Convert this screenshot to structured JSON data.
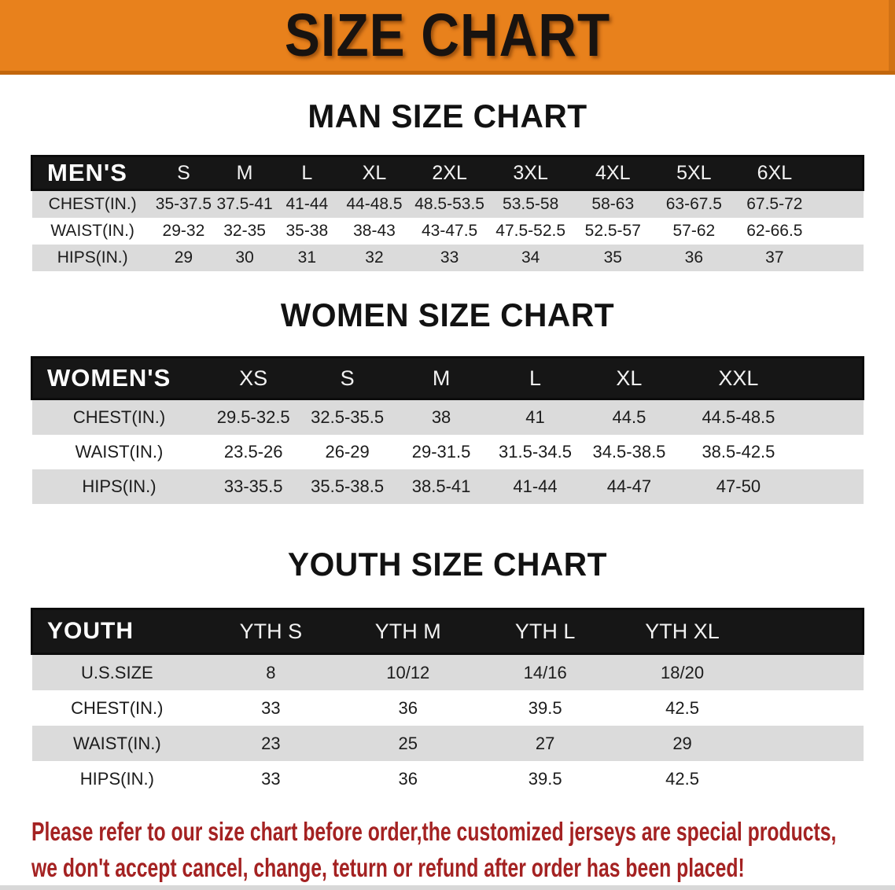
{
  "banner": {
    "title": "SIZE CHART"
  },
  "colors": {
    "banner_orange": "#E8811C",
    "banner_orange_dark": "#C2660C",
    "header_band_black": "#161616",
    "row_gray": "#DBDBDB",
    "disclaimer_red": "#A42222"
  },
  "sections": [
    {
      "heading": "MAN SIZE CHART",
      "table": {
        "corner_label": "MEN'S",
        "columns": [
          "S",
          "M",
          "L",
          "XL",
          "2XL",
          "3XL",
          "4XL",
          "5XL",
          "6XL"
        ],
        "rows": [
          {
            "label": "CHEST(IN.)",
            "values": [
              "35-37.5",
              "37.5-41",
              "41-44",
              "44-48.5",
              "48.5-53.5",
              "53.5-58",
              "58-63",
              "63-67.5",
              "67.5-72"
            ]
          },
          {
            "label": "WAIST(IN.)",
            "values": [
              "29-32",
              "32-35",
              "35-38",
              "38-43",
              "43-47.5",
              "47.5-52.5",
              "52.5-57",
              "57-62",
              "62-66.5"
            ]
          },
          {
            "label": "HIPS(IN.)",
            "values": [
              "29",
              "30",
              "31",
              "32",
              "33",
              "34",
              "35",
              "36",
              "37"
            ]
          }
        ]
      }
    },
    {
      "heading": "WOMEN SIZE CHART",
      "table": {
        "corner_label": "WOMEN'S",
        "columns": [
          "XS",
          "S",
          "M",
          "L",
          "XL",
          "XXL"
        ],
        "rows": [
          {
            "label": "CHEST(IN.)",
            "values": [
              "29.5-32.5",
              "32.5-35.5",
              "38",
              "41",
              "44.5",
              "44.5-48.5"
            ]
          },
          {
            "label": "WAIST(IN.)",
            "values": [
              "23.5-26",
              "26-29",
              "29-31.5",
              "31.5-34.5",
              "34.5-38.5",
              "38.5-42.5"
            ]
          },
          {
            "label": "HIPS(IN.)",
            "values": [
              "33-35.5",
              "35.5-38.5",
              "38.5-41",
              "41-44",
              "44-47",
              "47-50"
            ]
          }
        ]
      }
    },
    {
      "heading": "YOUTH SIZE CHART",
      "table": {
        "corner_label": "YOUTH",
        "columns": [
          "YTH S",
          "YTH M",
          "YTH L",
          "YTH XL"
        ],
        "rows": [
          {
            "label": "U.S.SIZE",
            "values": [
              "8",
              "10/12",
              "14/16",
              "18/20"
            ]
          },
          {
            "label": "CHEST(IN.)",
            "values": [
              "33",
              "36",
              "39.5",
              "42.5"
            ]
          },
          {
            "label": "WAIST(IN.)",
            "values": [
              "23",
              "25",
              "27",
              "29"
            ]
          },
          {
            "label": "HIPS(IN.)",
            "values": [
              "33",
              "36",
              "39.5",
              "42.5"
            ]
          }
        ]
      }
    }
  ],
  "disclaimer": {
    "line1": "Please refer to our size chart before order,the customized jerseys are special products,",
    "line2": "we don't accept cancel, change, teturn or refund after order has been placed!"
  }
}
